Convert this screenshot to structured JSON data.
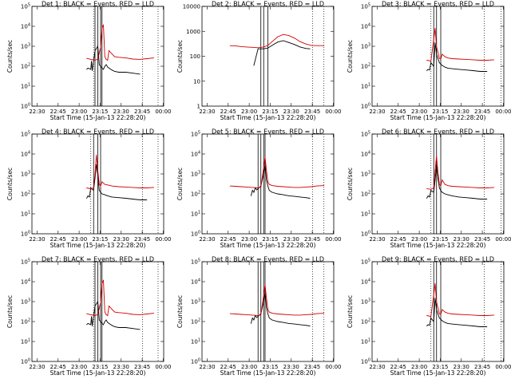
{
  "chart_data": [
    {
      "type": "line",
      "title": "Det 1: BLACK = Events, RED = LLD",
      "xlabel": "Start Time (15-Jan-13 22:28:20)",
      "ylabel": "Counts/sec",
      "x_ticks": [
        "22:30",
        "22:45",
        "23:00",
        "23:15",
        "23:30",
        "23:45",
        "00:00"
      ],
      "y_ticks": [
        "10^0",
        "10^1",
        "10^2",
        "10^3",
        "10^4",
        "10^5"
      ],
      "yscale": "log",
      "ylim": [
        1,
        100000
      ],
      "xlim_minutes": [
        -2,
        92
      ],
      "vlines_solid": [
        43,
        45,
        47,
        48
      ],
      "vlines_dotted": [
        42,
        77,
        88
      ],
      "series": [
        {
          "name": "Events",
          "color": "#000000",
          "x": [
            37,
            38,
            40,
            40.5,
            41,
            43,
            45,
            46,
            48,
            49,
            50,
            51,
            52,
            53,
            55,
            57,
            60,
            65,
            70,
            75
          ],
          "y": [
            70,
            80,
            70,
            180,
            60,
            600,
            1000,
            120,
            80,
            70,
            100,
            120,
            90,
            80,
            65,
            55,
            50,
            50,
            45,
            40
          ]
        },
        {
          "name": "LLD",
          "color": "#d40000",
          "x": [
            37,
            40,
            43,
            45,
            47,
            48,
            49,
            50,
            51,
            52,
            53,
            55,
            57,
            60,
            65,
            70,
            75,
            80,
            85
          ],
          "y": [
            250,
            220,
            200,
            230,
            900,
            8000,
            12000,
            300,
            220,
            200,
            600,
            420,
            300,
            280,
            260,
            230,
            220,
            240,
            260
          ]
        }
      ]
    },
    {
      "type": "line",
      "title": "Det 2: BLACK = Events, RED = LLD",
      "xlabel": "Start Time (15-Jan-13 22:28:20)",
      "ylabel": "Counts/sec",
      "x_ticks": [
        "22:30",
        "22:45",
        "23:00",
        "23:15",
        "23:30",
        "23:45",
        "00:00"
      ],
      "y_ticks": [
        "1",
        "10",
        "100",
        "1000",
        "10000"
      ],
      "yscale": "log",
      "ylim": [
        1,
        15000
      ],
      "xlim_minutes": [
        -2,
        92
      ],
      "vlines_solid": [
        40,
        42,
        45
      ],
      "vlines_dotted": [
        77,
        85
      ],
      "series": [
        {
          "name": "Events",
          "color": "#000000",
          "x": [
            35,
            38,
            40,
            42,
            45,
            48,
            52,
            56,
            60,
            64,
            68,
            72,
            75
          ],
          "y": [
            50,
            250,
            250,
            250,
            270,
            350,
            480,
            550,
            460,
            380,
            300,
            260,
            250
          ]
        },
        {
          "name": "LLD",
          "color": "#d40000",
          "x": [
            18,
            22,
            26,
            30,
            34,
            38,
            42,
            45,
            48,
            52,
            56,
            60,
            64,
            68,
            72,
            76,
            80,
            85
          ],
          "y": [
            340,
            330,
            310,
            300,
            290,
            280,
            300,
            350,
            500,
            800,
            1000,
            900,
            700,
            500,
            400,
            350,
            340,
            340
          ]
        }
      ]
    },
    {
      "type": "line",
      "title": "Det 3: BLACK = Events, RED = LLD",
      "xlabel": "Start Time (15-Jan-13 22:28:20)",
      "ylabel": "Counts/sec",
      "x_ticks": [
        "22:30",
        "22:45",
        "23:00",
        "23:15",
        "23:30",
        "23:45",
        "00:00"
      ],
      "y_ticks": [
        "10^0",
        "10^1",
        "10^2",
        "10^3",
        "10^4",
        "10^5"
      ],
      "yscale": "log",
      "ylim": [
        1,
        100000
      ],
      "xlim_minutes": [
        -2,
        92
      ],
      "vlines_solid": [
        42,
        44,
        47
      ],
      "vlines_dotted": [
        40,
        78,
        90
      ],
      "series": [
        {
          "name": "Events",
          "color": "#000000",
          "x": [
            37,
            38,
            39,
            40,
            42,
            43,
            44,
            46,
            47,
            48,
            50,
            52,
            55,
            60,
            65,
            70,
            75,
            80
          ],
          "y": [
            60,
            70,
            65,
            150,
            100,
            1500,
            400,
            150,
            130,
            110,
            90,
            80,
            75,
            70,
            65,
            60,
            55,
            55
          ]
        },
        {
          "name": "LLD",
          "color": "#d40000",
          "x": [
            37,
            40,
            43,
            44,
            46,
            47,
            48,
            50,
            52,
            55,
            60,
            65,
            70,
            75,
            80,
            85
          ],
          "y": [
            200,
            180,
            8000,
            1000,
            250,
            220,
            400,
            300,
            260,
            240,
            230,
            220,
            210,
            200,
            200,
            210
          ]
        }
      ]
    },
    {
      "type": "line",
      "title": "Det 4: BLACK = Events, RED = LLD",
      "xlabel": "Start Time (15-Jan-13 22:28:20)",
      "ylabel": "Counts/sec",
      "x_ticks": [
        "22:30",
        "22:45",
        "23:00",
        "23:15",
        "23:30",
        "23:45",
        "00:00"
      ],
      "y_ticks": [
        "10^0",
        "10^1",
        "10^2",
        "10^3",
        "10^4",
        "10^5"
      ],
      "yscale": "log",
      "ylim": [
        1,
        100000
      ],
      "xlim_minutes": [
        -2,
        92
      ],
      "vlines_solid": [
        42,
        45,
        47
      ],
      "vlines_dotted": [
        40,
        77,
        88
      ],
      "series": [
        {
          "name": "Events",
          "color": "#000000",
          "x": [
            37,
            38,
            39,
            40,
            42,
            43,
            44,
            45,
            46,
            47,
            48,
            50,
            52,
            55,
            60,
            65,
            70,
            75,
            80
          ],
          "y": [
            60,
            80,
            70,
            200,
            150,
            600,
            3000,
            800,
            150,
            120,
            100,
            90,
            80,
            70,
            65,
            60,
            55,
            50,
            50
          ]
        },
        {
          "name": "LLD",
          "color": "#d40000",
          "x": [
            37,
            40,
            42,
            43,
            44,
            45,
            46,
            47,
            48,
            50,
            52,
            55,
            60,
            65,
            70,
            75,
            80,
            85
          ],
          "y": [
            200,
            180,
            200,
            1000,
            9000,
            1500,
            300,
            250,
            400,
            300,
            280,
            250,
            230,
            220,
            210,
            200,
            200,
            210
          ]
        }
      ]
    },
    {
      "type": "line",
      "title": "Det 5: BLACK = Events, RED = LLD",
      "xlabel": "Start Time (15-Jan-13 22:28:20)",
      "ylabel": "Counts/sec",
      "x_ticks": [
        "22:30",
        "22:45",
        "23:00",
        "23:15",
        "23:30",
        "23:45",
        "00:00"
      ],
      "y_ticks": [
        "10^0",
        "10^1",
        "10^2",
        "10^3",
        "10^4",
        "10^5"
      ],
      "yscale": "log",
      "ylim": [
        1,
        100000
      ],
      "xlim_minutes": [
        -2,
        92
      ],
      "vlines_solid": [
        38,
        40,
        42,
        43
      ],
      "vlines_dotted": [
        77,
        85
      ],
      "series": [
        {
          "name": "Events",
          "color": "#000000",
          "x": [
            33,
            34,
            35,
            36,
            37,
            38,
            40,
            42,
            43,
            44,
            45,
            46,
            48,
            52,
            56,
            60,
            64,
            68,
            72,
            75
          ],
          "y": [
            80,
            150,
            120,
            200,
            160,
            180,
            250,
            1000,
            3000,
            500,
            250,
            150,
            120,
            100,
            90,
            80,
            75,
            70,
            65,
            60
          ]
        },
        {
          "name": "LLD",
          "color": "#d40000",
          "x": [
            18,
            22,
            26,
            30,
            34,
            38,
            40,
            42,
            43,
            44,
            45,
            46,
            48,
            52,
            56,
            60,
            64,
            68,
            72,
            76,
            80,
            85
          ],
          "y": [
            250,
            240,
            230,
            220,
            210,
            200,
            220,
            2000,
            7000,
            1500,
            400,
            300,
            260,
            240,
            230,
            220,
            210,
            210,
            220,
            230,
            250,
            260
          ]
        }
      ]
    },
    {
      "type": "line",
      "title": "Det 6: BLACK = Events, RED = LLD",
      "xlabel": "Start Time (15-Jan-13 22:28:20)",
      "ylabel": "Counts/sec",
      "x_ticks": [
        "22:30",
        "22:45",
        "23:00",
        "23:15",
        "23:30",
        "23:45",
        "00:00"
      ],
      "y_ticks": [
        "10^0",
        "10^1",
        "10^2",
        "10^3",
        "10^4",
        "10^5"
      ],
      "yscale": "log",
      "ylim": [
        1,
        100000
      ],
      "xlim_minutes": [
        -2,
        92
      ],
      "vlines_solid": [
        42,
        44,
        47
      ],
      "vlines_dotted": [
        40,
        78,
        90
      ],
      "series": [
        {
          "name": "Events",
          "color": "#000000",
          "x": [
            37,
            38,
            39,
            40,
            42,
            43,
            44,
            45,
            46,
            47,
            48,
            50,
            52,
            55,
            60,
            65,
            70,
            75,
            80
          ],
          "y": [
            60,
            80,
            70,
            150,
            120,
            500,
            3000,
            600,
            200,
            150,
            120,
            100,
            90,
            80,
            70,
            65,
            60,
            55,
            55
          ]
        },
        {
          "name": "LLD",
          "color": "#d40000",
          "x": [
            37,
            40,
            42,
            43,
            44,
            45,
            46,
            47,
            48,
            50,
            52,
            55,
            60,
            65,
            70,
            75,
            80,
            85
          ],
          "y": [
            180,
            170,
            200,
            1500,
            8000,
            1200,
            300,
            250,
            500,
            300,
            260,
            240,
            230,
            220,
            210,
            200,
            200,
            210
          ]
        }
      ]
    },
    {
      "type": "line",
      "title": "Det 7: BLACK = Events, RED = LLD",
      "xlabel": "Start Time (15-Jan-13 22:28:20)",
      "ylabel": "Counts/sec",
      "x_ticks": [
        "22:30",
        "22:45",
        "23:00",
        "23:15",
        "23:30",
        "23:45",
        "00:00"
      ],
      "y_ticks": [
        "10^0",
        "10^1",
        "10^2",
        "10^3",
        "10^4",
        "10^5"
      ],
      "yscale": "log",
      "ylim": [
        1,
        100000
      ],
      "xlim_minutes": [
        -2,
        92
      ],
      "vlines_solid": [
        43,
        45,
        47,
        48
      ],
      "vlines_dotted": [
        42,
        77,
        88
      ],
      "series": [
        {
          "name": "Events",
          "color": "#000000",
          "x": [
            37,
            38,
            40,
            40.5,
            41,
            43,
            45,
            46,
            48,
            49,
            50,
            51,
            52,
            53,
            55,
            57,
            60,
            65,
            70,
            75
          ],
          "y": [
            70,
            80,
            70,
            180,
            60,
            600,
            1000,
            120,
            80,
            70,
            100,
            120,
            90,
            80,
            65,
            55,
            50,
            50,
            45,
            40
          ]
        },
        {
          "name": "LLD",
          "color": "#d40000",
          "x": [
            37,
            40,
            43,
            45,
            47,
            48,
            49,
            50,
            51,
            52,
            53,
            55,
            57,
            60,
            65,
            70,
            75,
            80,
            85
          ],
          "y": [
            250,
            220,
            200,
            230,
            900,
            8000,
            12000,
            300,
            220,
            200,
            600,
            420,
            300,
            280,
            260,
            230,
            220,
            240,
            260
          ]
        }
      ]
    },
    {
      "type": "line",
      "title": "Det 8: BLACK = Events, RED = LLD",
      "xlabel": "Start Time (15-Jan-13 22:28:20)",
      "ylabel": "Counts/sec",
      "x_ticks": [
        "22:30",
        "22:45",
        "23:00",
        "23:15",
        "23:30",
        "23:45",
        "00:00"
      ],
      "y_ticks": [
        "10^0",
        "10^1",
        "10^2",
        "10^3",
        "10^4",
        "10^5"
      ],
      "yscale": "log",
      "ylim": [
        1,
        100000
      ],
      "xlim_minutes": [
        -2,
        92
      ],
      "vlines_solid": [
        38,
        40,
        42,
        43
      ],
      "vlines_dotted": [
        77,
        85
      ],
      "series": [
        {
          "name": "Events",
          "color": "#000000",
          "x": [
            33,
            34,
            35,
            36,
            37,
            38,
            40,
            42,
            43,
            44,
            45,
            46,
            48,
            52,
            56,
            60,
            64,
            68,
            72,
            75
          ],
          "y": [
            80,
            150,
            120,
            200,
            160,
            180,
            250,
            1000,
            3000,
            500,
            250,
            150,
            120,
            100,
            90,
            80,
            75,
            70,
            65,
            60
          ]
        },
        {
          "name": "LLD",
          "color": "#d40000",
          "x": [
            18,
            22,
            26,
            30,
            34,
            38,
            40,
            42,
            43,
            44,
            45,
            46,
            48,
            52,
            56,
            60,
            64,
            68,
            72,
            76,
            80,
            85
          ],
          "y": [
            250,
            240,
            230,
            220,
            210,
            200,
            220,
            2000,
            7000,
            1500,
            400,
            300,
            260,
            240,
            230,
            220,
            210,
            210,
            220,
            230,
            250,
            260
          ]
        }
      ]
    },
    {
      "type": "line",
      "title": "Det 9: BLACK = Events, RED = LLD",
      "xlabel": "Start Time (15-Jan-13 22:28:20)",
      "ylabel": "Counts/sec",
      "x_ticks": [
        "22:30",
        "22:45",
        "23:00",
        "23:15",
        "23:30",
        "23:45",
        "00:00"
      ],
      "y_ticks": [
        "10^0",
        "10^1",
        "10^2",
        "10^3",
        "10^4",
        "10^5"
      ],
      "yscale": "log",
      "ylim": [
        1,
        100000
      ],
      "xlim_minutes": [
        -2,
        92
      ],
      "vlines_solid": [
        42,
        44,
        47
      ],
      "vlines_dotted": [
        40,
        78,
        90
      ],
      "series": [
        {
          "name": "Events",
          "color": "#000000",
          "x": [
            37,
            38,
            39,
            40,
            42,
            43,
            44,
            46,
            47,
            48,
            50,
            52,
            55,
            60,
            65,
            70,
            75,
            80
          ],
          "y": [
            60,
            70,
            65,
            150,
            100,
            1500,
            400,
            150,
            130,
            110,
            90,
            80,
            75,
            70,
            65,
            60,
            55,
            55
          ]
        },
        {
          "name": "LLD",
          "color": "#d40000",
          "x": [
            37,
            40,
            43,
            44,
            46,
            47,
            48,
            50,
            52,
            55,
            60,
            65,
            70,
            75,
            80,
            85
          ],
          "y": [
            200,
            180,
            8000,
            1000,
            250,
            220,
            400,
            300,
            260,
            240,
            230,
            220,
            210,
            200,
            200,
            210
          ]
        }
      ]
    }
  ]
}
